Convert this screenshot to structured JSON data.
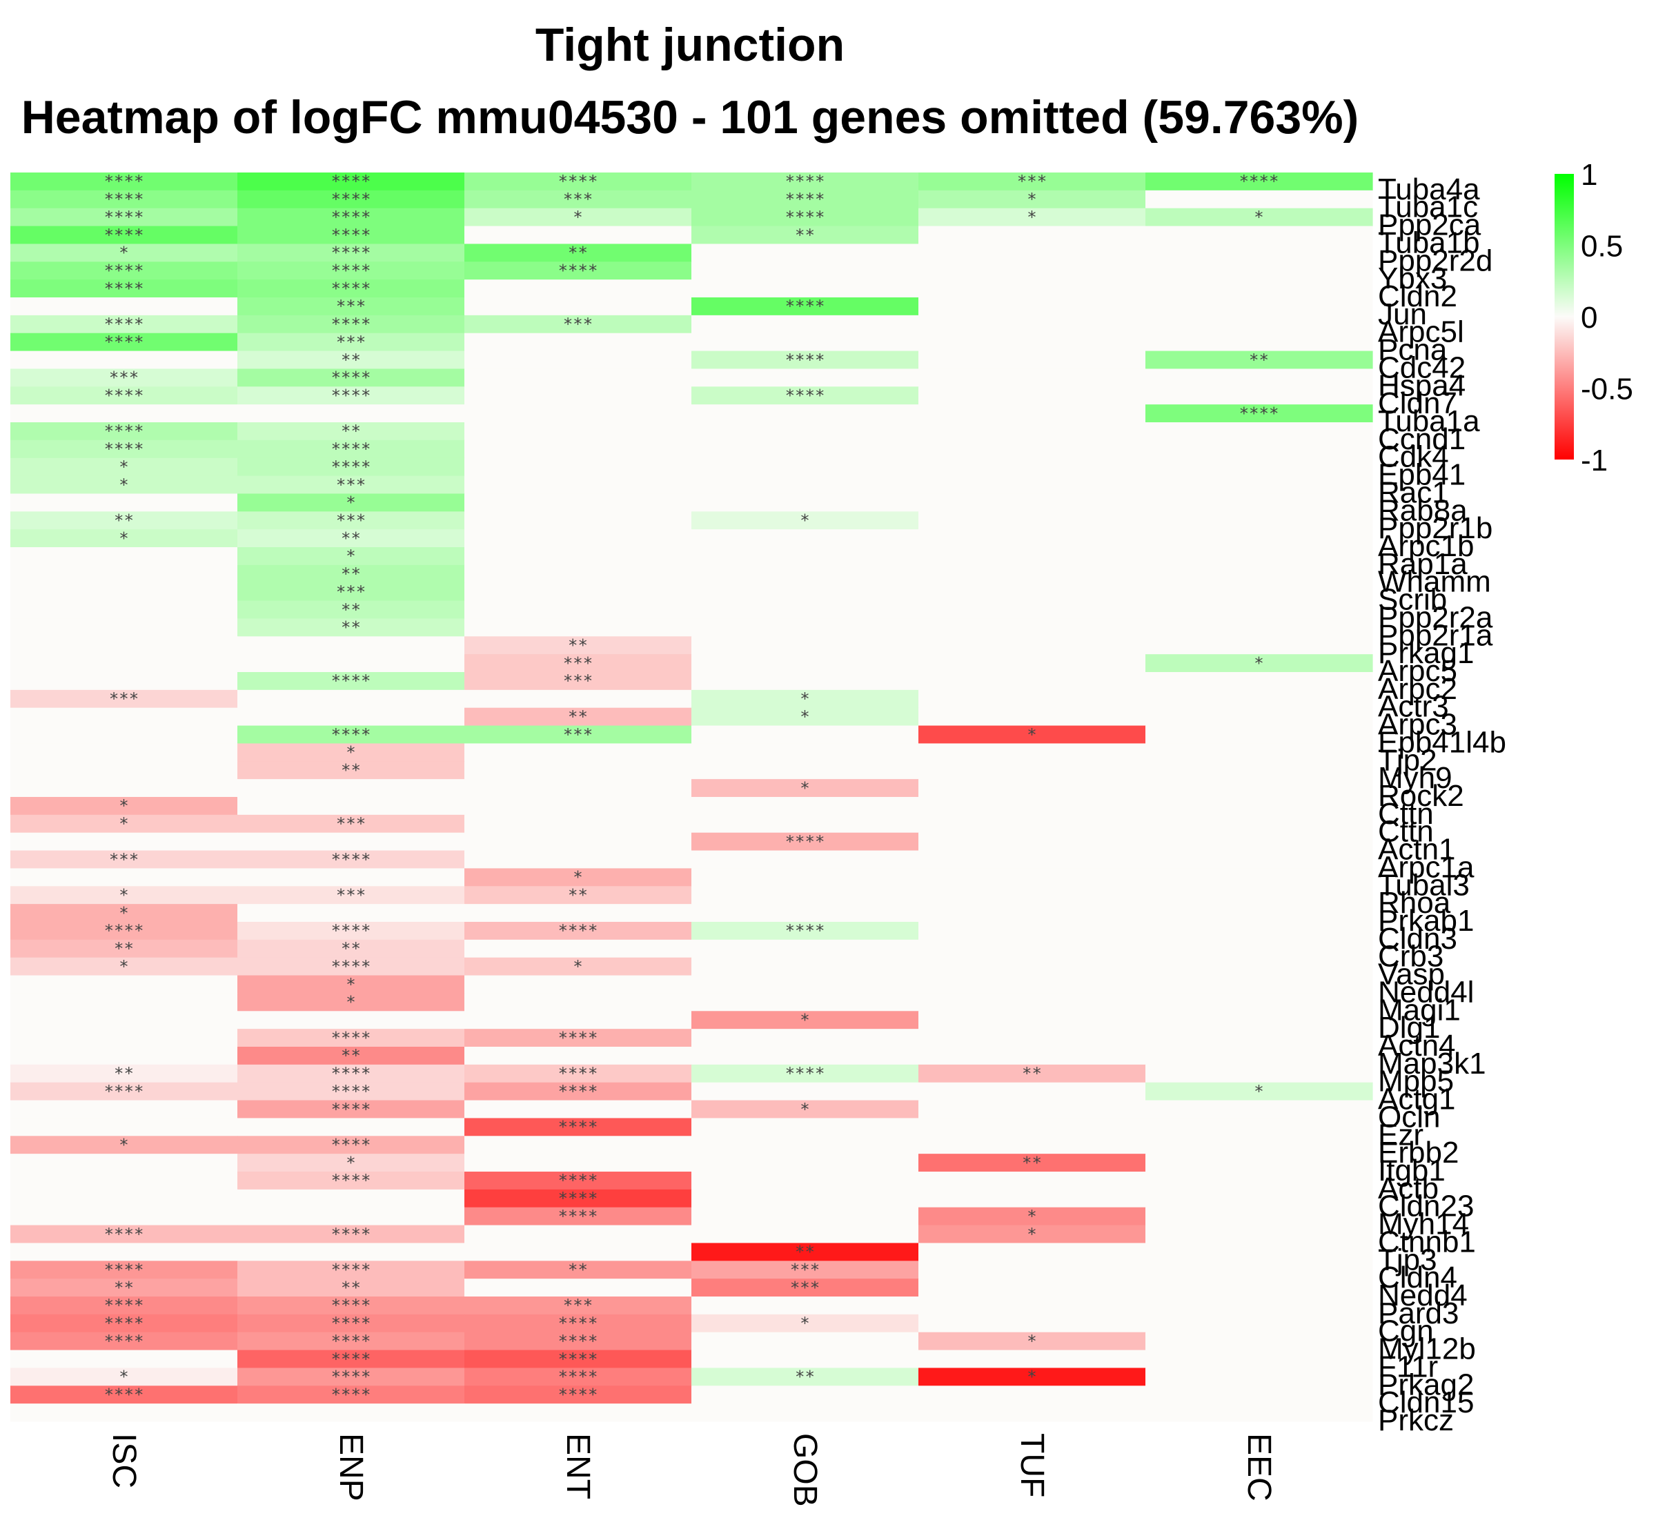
{
  "chart_data": {
    "type": "heatmap",
    "title": "Tight junction",
    "subtitle": "Heatmap of logFC mmu04530 - 101 genes omitted (59.763%)",
    "columns": [
      "ISC",
      "ENP",
      "ENT",
      "GOB",
      "TUF",
      "EEC"
    ],
    "color_scale": {
      "min": -1,
      "max": 1,
      "low": "#ff0000",
      "mid": "#fcfbf9",
      "high": "#00ff00",
      "ticks": [
        1,
        0.5,
        0,
        -0.5,
        -1
      ],
      "tick_labels": [
        "1",
        "0.5",
        "0",
        "-0.5",
        "-1"
      ]
    },
    "rows": [
      {
        "gene": "Tuba4a",
        "values": [
          0.55,
          0.7,
          0.4,
          0.35,
          0.4,
          0.55
        ],
        "sig": [
          "****",
          "****",
          "****",
          "****",
          "***",
          "****"
        ]
      },
      {
        "gene": "Tuba1c",
        "values": [
          0.45,
          0.6,
          0.35,
          0.35,
          0.3,
          0
        ],
        "sig": [
          "****",
          "****",
          "***",
          "****",
          "*",
          ""
        ]
      },
      {
        "gene": "Ppp2ca",
        "values": [
          0.35,
          0.5,
          0.2,
          0.35,
          0.15,
          0.25
        ],
        "sig": [
          "****",
          "****",
          "*",
          "****",
          "*",
          "*"
        ]
      },
      {
        "gene": "Tuba1b",
        "values": [
          0.6,
          0.5,
          0,
          0.3,
          0,
          0
        ],
        "sig": [
          "****",
          "****",
          "",
          "**",
          "",
          ""
        ]
      },
      {
        "gene": "Ppp2r2d",
        "values": [
          0.3,
          0.35,
          0.55,
          0,
          0,
          0
        ],
        "sig": [
          "*",
          "****",
          "**",
          "",
          "",
          ""
        ]
      },
      {
        "gene": "Ybx3",
        "values": [
          0.45,
          0.4,
          0.45,
          0,
          0,
          0
        ],
        "sig": [
          "****",
          "****",
          "****",
          "",
          "",
          ""
        ]
      },
      {
        "gene": "Cldn2",
        "values": [
          0.5,
          0.45,
          0,
          0,
          0,
          0
        ],
        "sig": [
          "****",
          "****",
          "",
          "",
          "",
          ""
        ]
      },
      {
        "gene": "Jun",
        "values": [
          0,
          0.4,
          0,
          0.6,
          0,
          0
        ],
        "sig": [
          "",
          "***",
          "",
          "****",
          "",
          ""
        ]
      },
      {
        "gene": "Arpc5l",
        "values": [
          0.2,
          0.35,
          0.25,
          0,
          0,
          0
        ],
        "sig": [
          "****",
          "****",
          "***",
          "",
          "",
          ""
        ]
      },
      {
        "gene": "Pcna",
        "values": [
          0.55,
          0.25,
          0,
          0,
          0,
          0
        ],
        "sig": [
          "****",
          "***",
          "",
          "",
          "",
          ""
        ]
      },
      {
        "gene": "Cdc42",
        "values": [
          0,
          0.15,
          0,
          0.2,
          0,
          0.4
        ],
        "sig": [
          "",
          "**",
          "",
          "****",
          "",
          "**"
        ]
      },
      {
        "gene": "Hspa4",
        "values": [
          0.15,
          0.35,
          0,
          0,
          0,
          0
        ],
        "sig": [
          "***",
          "****",
          "",
          "",
          "",
          ""
        ]
      },
      {
        "gene": "Cldn7",
        "values": [
          0.2,
          0.15,
          0,
          0.2,
          0,
          0
        ],
        "sig": [
          "****",
          "****",
          "",
          "****",
          "",
          ""
        ]
      },
      {
        "gene": "Tuba1a",
        "values": [
          0,
          0,
          0,
          0,
          0,
          0.5
        ],
        "sig": [
          "",
          "",
          "",
          "",
          "",
          "****"
        ]
      },
      {
        "gene": "Ccnd1",
        "values": [
          0.3,
          0.2,
          0,
          0,
          0,
          0
        ],
        "sig": [
          "****",
          "**",
          "",
          "",
          "",
          ""
        ]
      },
      {
        "gene": "Cdk4",
        "values": [
          0.25,
          0.25,
          0,
          0,
          0,
          0
        ],
        "sig": [
          "****",
          "****",
          "",
          "",
          "",
          ""
        ]
      },
      {
        "gene": "Epb41",
        "values": [
          0.2,
          0.25,
          0,
          0,
          0,
          0
        ],
        "sig": [
          "*",
          "****",
          "",
          "",
          "",
          ""
        ]
      },
      {
        "gene": "Rac1",
        "values": [
          0.2,
          0.2,
          0,
          0,
          0,
          0
        ],
        "sig": [
          "*",
          "***",
          "",
          "",
          "",
          ""
        ]
      },
      {
        "gene": "Rab8a",
        "values": [
          0,
          0.4,
          0,
          0,
          0,
          0
        ],
        "sig": [
          "",
          "*",
          "",
          "",
          "",
          ""
        ]
      },
      {
        "gene": "Ppp2r1b",
        "values": [
          0.15,
          0.2,
          0,
          0.1,
          0,
          0
        ],
        "sig": [
          "**",
          "***",
          "",
          "*",
          "",
          ""
        ]
      },
      {
        "gene": "Arpc1b",
        "values": [
          0.2,
          0.15,
          0,
          0,
          0,
          0
        ],
        "sig": [
          "*",
          "**",
          "",
          "",
          "",
          ""
        ]
      },
      {
        "gene": "Rap1a",
        "values": [
          0,
          0.25,
          0,
          0,
          0,
          0
        ],
        "sig": [
          "",
          "*",
          "",
          "",
          "",
          ""
        ]
      },
      {
        "gene": "Whamm",
        "values": [
          0,
          0.3,
          0,
          0,
          0,
          0
        ],
        "sig": [
          "",
          "**",
          "",
          "",
          "",
          ""
        ]
      },
      {
        "gene": "Scrib",
        "values": [
          0,
          0.3,
          0,
          0,
          0,
          0
        ],
        "sig": [
          "",
          "***",
          "",
          "",
          "",
          ""
        ]
      },
      {
        "gene": "Ppp2r2a",
        "values": [
          0,
          0.25,
          0,
          0,
          0,
          0
        ],
        "sig": [
          "",
          "**",
          "",
          "",
          "",
          ""
        ]
      },
      {
        "gene": "Ppp2r1a",
        "values": [
          0,
          0.2,
          0,
          0,
          0,
          0
        ],
        "sig": [
          "",
          "**",
          "",
          "",
          "",
          ""
        ]
      },
      {
        "gene": "Prkag1",
        "values": [
          0,
          0,
          -0.15,
          0,
          0,
          0
        ],
        "sig": [
          "",
          "",
          "**",
          "",
          "",
          ""
        ]
      },
      {
        "gene": "Arpc5",
        "values": [
          0,
          0,
          -0.2,
          0,
          0,
          0.25
        ],
        "sig": [
          "",
          "",
          "***",
          "",
          "",
          "*"
        ]
      },
      {
        "gene": "Arpc2",
        "values": [
          0,
          0.25,
          -0.2,
          0,
          0,
          0
        ],
        "sig": [
          "",
          "****",
          "***",
          "",
          "",
          ""
        ]
      },
      {
        "gene": "Actr3",
        "values": [
          -0.15,
          0,
          0,
          0.15,
          0,
          0
        ],
        "sig": [
          "***",
          "",
          "",
          "*",
          "",
          ""
        ]
      },
      {
        "gene": "Arpc3",
        "values": [
          0,
          0,
          -0.25,
          0.15,
          0,
          0
        ],
        "sig": [
          "",
          "",
          "**",
          "*",
          "",
          ""
        ]
      },
      {
        "gene": "Epb41l4b",
        "values": [
          0,
          0.35,
          0.35,
          0,
          -0.7,
          0
        ],
        "sig": [
          "",
          "****",
          "***",
          "",
          "*",
          ""
        ]
      },
      {
        "gene": "Tjp2",
        "values": [
          0,
          -0.2,
          0,
          0,
          0,
          0
        ],
        "sig": [
          "",
          "*",
          "",
          "",
          "",
          ""
        ]
      },
      {
        "gene": "Myh9",
        "values": [
          0,
          -0.2,
          0,
          0,
          0,
          0
        ],
        "sig": [
          "",
          "**",
          "",
          "",
          "",
          ""
        ]
      },
      {
        "gene": "Rock2",
        "values": [
          0,
          0,
          0,
          -0.25,
          0,
          0
        ],
        "sig": [
          "",
          "",
          "",
          "*",
          "",
          ""
        ]
      },
      {
        "gene": "Cttn",
        "values": [
          -0.3,
          0,
          0,
          0,
          0,
          0
        ],
        "sig": [
          "*",
          "",
          "",
          "",
          "",
          ""
        ]
      },
      {
        "gene": "Cttn ",
        "values": [
          -0.2,
          -0.2,
          0,
          0,
          0,
          0
        ],
        "sig": [
          "*",
          "***",
          "",
          "",
          "",
          ""
        ]
      },
      {
        "gene": "Actn1",
        "values": [
          0,
          0,
          0,
          -0.3,
          0,
          0
        ],
        "sig": [
          "",
          "",
          "",
          "****",
          "",
          ""
        ]
      },
      {
        "gene": "Arpc1a",
        "values": [
          -0.15,
          -0.15,
          0,
          0,
          0,
          0
        ],
        "sig": [
          "***",
          "****",
          "",
          "",
          "",
          ""
        ]
      },
      {
        "gene": "Tubal3",
        "values": [
          0,
          0,
          -0.3,
          0,
          0,
          0
        ],
        "sig": [
          "",
          "",
          "*",
          "",
          "",
          ""
        ]
      },
      {
        "gene": "Rhoa",
        "values": [
          -0.1,
          -0.1,
          -0.2,
          0,
          0,
          0
        ],
        "sig": [
          "*",
          "***",
          "**",
          "",
          "",
          ""
        ]
      },
      {
        "gene": "Prkab1",
        "values": [
          -0.3,
          0,
          0,
          0,
          0,
          0
        ],
        "sig": [
          "*",
          "",
          "",
          "",
          "",
          ""
        ]
      },
      {
        "gene": "Cldn3",
        "values": [
          -0.3,
          -0.1,
          -0.25,
          0.15,
          0,
          0
        ],
        "sig": [
          "****",
          "****",
          "****",
          "****",
          "",
          ""
        ]
      },
      {
        "gene": "Crb3",
        "values": [
          -0.25,
          -0.15,
          0,
          0,
          0,
          0
        ],
        "sig": [
          "**",
          "**",
          "",
          "",
          "",
          ""
        ]
      },
      {
        "gene": "Vasp",
        "values": [
          -0.15,
          -0.15,
          -0.2,
          0,
          0,
          0
        ],
        "sig": [
          "*",
          "****",
          "*",
          "",
          "",
          ""
        ]
      },
      {
        "gene": "Nedd4l",
        "values": [
          0,
          -0.35,
          0,
          0,
          0,
          0
        ],
        "sig": [
          "",
          "*",
          "",
          "",
          "",
          ""
        ]
      },
      {
        "gene": "Magi1",
        "values": [
          0,
          -0.35,
          0,
          0,
          0,
          0
        ],
        "sig": [
          "",
          "*",
          "",
          "",
          "",
          ""
        ]
      },
      {
        "gene": "Dlg1",
        "values": [
          0,
          0,
          0,
          -0.4,
          0,
          0
        ],
        "sig": [
          "",
          "",
          "",
          "*",
          "",
          ""
        ]
      },
      {
        "gene": "Actn4",
        "values": [
          0,
          -0.2,
          -0.3,
          0,
          0,
          0
        ],
        "sig": [
          "",
          "****",
          "****",
          "",
          "",
          ""
        ]
      },
      {
        "gene": "Map3k1",
        "values": [
          0,
          -0.45,
          0,
          0,
          0,
          0
        ],
        "sig": [
          "",
          "**",
          "",
          "",
          "",
          ""
        ]
      },
      {
        "gene": "Mpp5",
        "values": [
          -0.05,
          -0.15,
          -0.2,
          0.15,
          -0.25,
          0
        ],
        "sig": [
          "**",
          "****",
          "****",
          "****",
          "**",
          ""
        ]
      },
      {
        "gene": "Actg1",
        "values": [
          -0.15,
          -0.15,
          -0.35,
          0,
          0,
          0.15
        ],
        "sig": [
          "****",
          "****",
          "****",
          "",
          "",
          "*"
        ]
      },
      {
        "gene": "Ocln",
        "values": [
          0,
          -0.35,
          0,
          -0.25,
          0,
          0
        ],
        "sig": [
          "",
          "****",
          "",
          "*",
          "",
          ""
        ]
      },
      {
        "gene": "Ezr",
        "values": [
          0,
          0,
          -0.65,
          0,
          0,
          0
        ],
        "sig": [
          "",
          "",
          "****",
          "",
          "",
          ""
        ]
      },
      {
        "gene": "Erbb2",
        "values": [
          -0.3,
          -0.3,
          0,
          0,
          0,
          0
        ],
        "sig": [
          "*",
          "****",
          "",
          "",
          "",
          ""
        ]
      },
      {
        "gene": "Itgb1",
        "values": [
          0,
          -0.15,
          0,
          0,
          -0.55,
          0
        ],
        "sig": [
          "",
          "*",
          "",
          "",
          "**",
          ""
        ]
      },
      {
        "gene": "Actb",
        "values": [
          0,
          -0.2,
          -0.6,
          0,
          0,
          0
        ],
        "sig": [
          "",
          "****",
          "****",
          "",
          "",
          ""
        ]
      },
      {
        "gene": "Cldn23",
        "values": [
          0,
          0,
          -0.75,
          0,
          0,
          0
        ],
        "sig": [
          "",
          "",
          "****",
          "",
          "",
          ""
        ]
      },
      {
        "gene": "Myh14",
        "values": [
          0,
          0,
          -0.45,
          0,
          -0.45,
          0
        ],
        "sig": [
          "",
          "",
          "****",
          "",
          "*",
          ""
        ]
      },
      {
        "gene": "Ctnnb1",
        "values": [
          -0.25,
          -0.25,
          0,
          0,
          -0.4,
          0
        ],
        "sig": [
          "****",
          "****",
          "",
          "",
          "*",
          ""
        ]
      },
      {
        "gene": "Tjp3",
        "values": [
          0,
          0,
          0,
          -0.9,
          0,
          0
        ],
        "sig": [
          "",
          "",
          "",
          "**",
          "",
          ""
        ]
      },
      {
        "gene": "Cldn4",
        "values": [
          -0.4,
          -0.25,
          -0.4,
          -0.35,
          0,
          0
        ],
        "sig": [
          "****",
          "****",
          "**",
          "***",
          "",
          ""
        ]
      },
      {
        "gene": "Nedd4",
        "values": [
          -0.35,
          -0.25,
          0,
          -0.5,
          0,
          0
        ],
        "sig": [
          "**",
          "**",
          "",
          "***",
          "",
          ""
        ]
      },
      {
        "gene": "Pard3",
        "values": [
          -0.45,
          -0.4,
          -0.4,
          0,
          0,
          0
        ],
        "sig": [
          "****",
          "****",
          "***",
          "",
          "",
          ""
        ]
      },
      {
        "gene": "Cgn",
        "values": [
          -0.5,
          -0.45,
          -0.45,
          -0.1,
          0,
          0
        ],
        "sig": [
          "****",
          "****",
          "****",
          "*",
          "",
          ""
        ]
      },
      {
        "gene": "Myl12b",
        "values": [
          -0.45,
          -0.4,
          -0.45,
          0,
          -0.25,
          0
        ],
        "sig": [
          "****",
          "****",
          "****",
          "",
          "*",
          ""
        ]
      },
      {
        "gene": "F11r",
        "values": [
          0,
          -0.6,
          -0.65,
          0,
          0,
          0
        ],
        "sig": [
          "",
          "****",
          "****",
          "",
          "",
          ""
        ]
      },
      {
        "gene": "Prkag2",
        "values": [
          -0.05,
          -0.4,
          -0.5,
          0.15,
          -0.9,
          0
        ],
        "sig": [
          "*",
          "****",
          "****",
          "**",
          "*",
          ""
        ]
      },
      {
        "gene": "Cldn15",
        "values": [
          -0.55,
          -0.5,
          -0.55,
          0,
          0,
          0
        ],
        "sig": [
          "****",
          "****",
          "****",
          "",
          "",
          ""
        ]
      },
      {
        "gene": "Prkcz",
        "values": [
          0,
          0,
          0,
          0,
          0,
          0
        ],
        "sig": [
          "",
          "",
          "",
          "",
          "",
          ""
        ]
      }
    ]
  }
}
